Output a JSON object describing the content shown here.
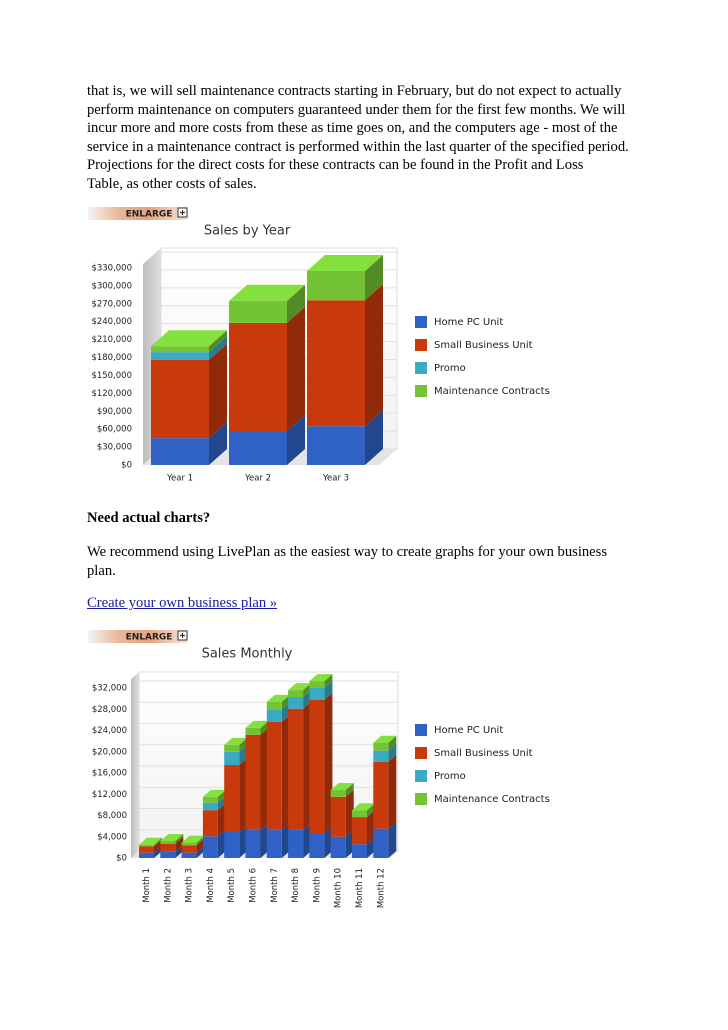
{
  "paragraph_lines": [
    "that is, we will sell maintenance contracts starting in February, but do not expect to actually",
    "perform maintenance on computers guaranteed under them for the first few months. We will",
    "incur more and more costs from these as time goes on, and the computers age - most of the",
    "service in a maintenance contract is performed within the last quarter of the specified period.",
    "Projections for the direct costs for these contracts can be found in the Profit and Loss",
    "Table, as other costs of sales."
  ],
  "enlarge_buttons": [
    "ENLARGE",
    "ENLARGE"
  ],
  "heading": "Need actual charts?",
  "recommend_lines": [
    "We recommend using LivePlan as the easiest way to create graphs for your own business",
    "plan."
  ],
  "link": "Create your own business plan »",
  "chart_data": [
    {
      "type": "bar",
      "stacked": true,
      "title": "Sales by Year",
      "categories": [
        "Year 1",
        "Year 2",
        "Year 3"
      ],
      "series": [
        {
          "name": "Home PC Unit",
          "color": "#2f62c4",
          "values": [
            45000,
            57000,
            65000
          ]
        },
        {
          "name": "Small Business Unit",
          "color": "#c83a0b",
          "values": [
            131000,
            181000,
            211000
          ]
        },
        {
          "name": "Promo",
          "color": "#3aa9c4",
          "values": [
            13000,
            0,
            0
          ]
        },
        {
          "name": "Maintenance Contracts",
          "color": "#73c334",
          "values": [
            10000,
            37000,
            49000
          ]
        }
      ],
      "ylim": [
        0,
        330000
      ],
      "yticks": [
        {
          "value": 0,
          "label": "$0"
        },
        {
          "value": 30000,
          "label": "$30,000"
        },
        {
          "value": 60000,
          "label": "$60,000"
        },
        {
          "value": 90000,
          "label": "$90,000"
        },
        {
          "value": 120000,
          "label": "$120,000"
        },
        {
          "value": 150000,
          "label": "$150,000"
        },
        {
          "value": 180000,
          "label": "$180,000"
        },
        {
          "value": 210000,
          "label": "$210,000"
        },
        {
          "value": 240000,
          "label": "$240,000"
        },
        {
          "value": 270000,
          "label": "$270,000"
        },
        {
          "value": 300000,
          "label": "$300,000"
        },
        {
          "value": 330000,
          "label": "$330,000"
        }
      ],
      "grid": true,
      "legend": "right"
    },
    {
      "type": "bar",
      "stacked": true,
      "title": "Sales Monthly",
      "categories": [
        "Month 1",
        "Month 2",
        "Month 3",
        "Month 4",
        "Month 5",
        "Month 6",
        "Month 7",
        "Month 8",
        "Month 9",
        "Month 10",
        "Month 11",
        "Month 12"
      ],
      "series": [
        {
          "name": "Home PC Unit",
          "color": "#2f62c4",
          "values": [
            1000,
            1200,
            1000,
            4100,
            4900,
            5300,
            5300,
            5300,
            4700,
            4000,
            2600,
            5500
          ]
        },
        {
          "name": "Small Business Unit",
          "color": "#c83a0b",
          "values": [
            1200,
            1500,
            1400,
            4900,
            12600,
            17900,
            20300,
            22800,
            25100,
            7500,
            5100,
            12600
          ]
        },
        {
          "name": "Promo",
          "color": "#3aa9c4",
          "values": [
            0,
            0,
            0,
            1400,
            2500,
            0,
            2400,
            2200,
            2200,
            0,
            0,
            2100
          ]
        },
        {
          "name": "Maintenance Contracts",
          "color": "#73c334",
          "values": [
            300,
            500,
            500,
            1100,
            1300,
            1300,
            1400,
            1300,
            1300,
            1300,
            1300,
            1500
          ]
        }
      ],
      "ylim": [
        0,
        32000
      ],
      "yticks": [
        {
          "value": 0,
          "label": "$0"
        },
        {
          "value": 4000,
          "label": "$4,000"
        },
        {
          "value": 8000,
          "label": "$8,000"
        },
        {
          "value": 12000,
          "label": "$12,000"
        },
        {
          "value": 16000,
          "label": "$16,000"
        },
        {
          "value": 20000,
          "label": "$20,000"
        },
        {
          "value": 24000,
          "label": "$24,000"
        },
        {
          "value": 28000,
          "label": "$28,000"
        },
        {
          "value": 32000,
          "label": "$32,000"
        }
      ],
      "grid": true,
      "legend": "right"
    }
  ]
}
